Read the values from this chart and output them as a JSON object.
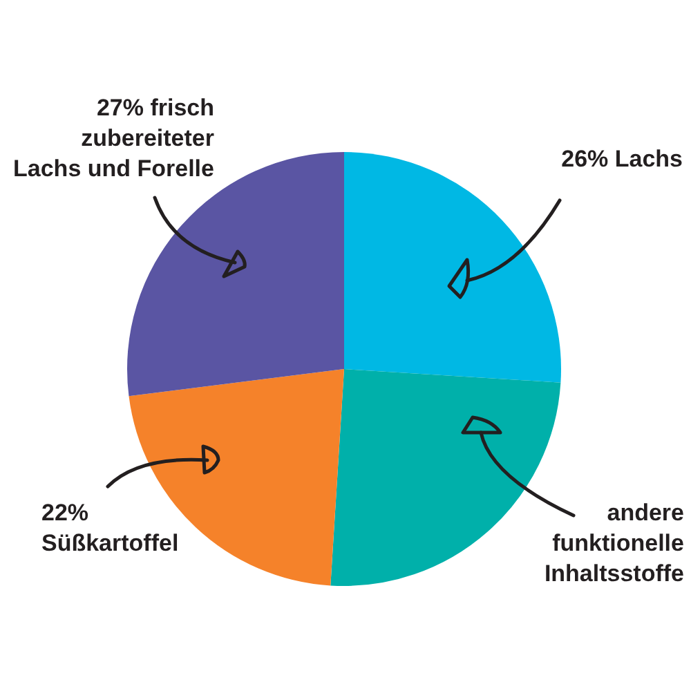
{
  "chart_data": {
    "type": "pie",
    "categories": [
      "26% Lachs",
      "andere funktionelle Inhaltsstoffe",
      "22% Süßkartoffel",
      "27% frisch zubereiteter Lachs und Forelle"
    ],
    "values": [
      26,
      25,
      22,
      27
    ],
    "colors": [
      "#00b8e4",
      "#00b0aa",
      "#f5822a",
      "#5a55a3"
    ],
    "legend": false
  }
}
